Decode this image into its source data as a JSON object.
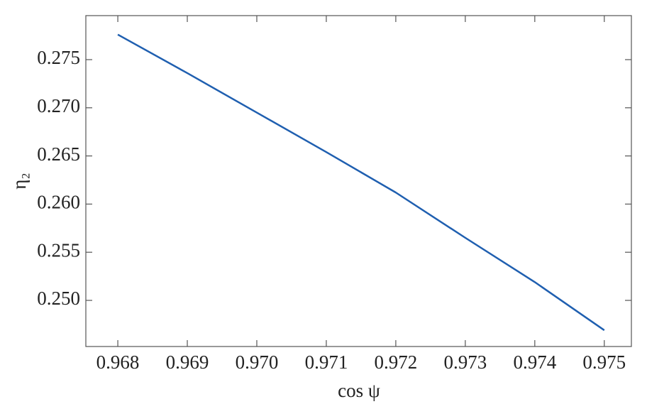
{
  "chart_data": {
    "type": "line",
    "x_label": "cos ψ",
    "y_label": "η₂",
    "x": [
      0.968,
      0.969,
      0.97,
      0.971,
      0.972,
      0.973,
      0.974,
      0.975
    ],
    "series": [
      {
        "color": "#1f5fb0",
        "values": [
          0.2776,
          0.2736,
          0.2695,
          0.2654,
          0.2612,
          0.2565,
          0.2519,
          0.2469
        ]
      }
    ],
    "xlim": [
      0.96754,
      0.97539
    ],
    "ylim": [
      0.24521,
      0.27957
    ],
    "xticks": [
      0.968,
      0.969,
      {
        "value": 0.97,
        "label": "0.970"
      },
      0.971,
      0.972,
      0.973,
      0.974,
      0.975
    ],
    "yticks": [
      {
        "value": 0.25,
        "label": "0.250"
      },
      0.255,
      {
        "value": 0.26,
        "label": "0.260"
      },
      0.265,
      {
        "value": 0.27,
        "label": "0.270"
      },
      0.275
    ],
    "grid": false
  }
}
